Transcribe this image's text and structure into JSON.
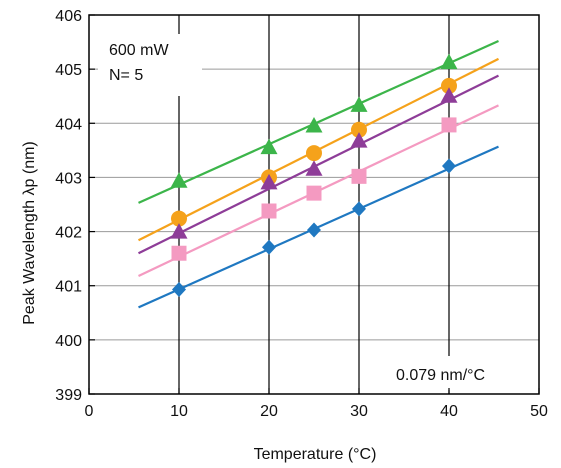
{
  "chart_data": {
    "type": "scatter",
    "title": "",
    "xlabel": "Temperature (°C)",
    "ylabel": "Peak Wavelength λp (nm)",
    "xlim": [
      0,
      50
    ],
    "ylim": [
      399,
      406
    ],
    "xticks": [
      0,
      10,
      20,
      30,
      40,
      50
    ],
    "yticks": [
      399,
      400,
      401,
      402,
      403,
      404,
      405,
      406
    ],
    "grid": true,
    "annotations": {
      "power": "600 mW",
      "count": "N= 5",
      "slope": "0.079 nm/°C"
    },
    "x": [
      10,
      20,
      25,
      30,
      40
    ],
    "series": [
      {
        "marker": "triangle",
        "color": "#3cb54a",
        "values": [
          402.93,
          403.55,
          403.95,
          404.33,
          405.12
        ],
        "fit": {
          "x": [
            5.5,
            45.5
          ],
          "y": [
            402.53,
            405.52
          ]
        }
      },
      {
        "marker": "circle",
        "color": "#f5a21b",
        "values": [
          402.24,
          403.0,
          403.45,
          403.88,
          404.69
        ],
        "fit": {
          "x": [
            5.5,
            45.5
          ],
          "y": [
            401.84,
            405.19
          ]
        }
      },
      {
        "marker": "triangle",
        "color": "#8e3d98",
        "values": [
          401.99,
          402.9,
          403.15,
          403.67,
          404.5
        ],
        "fit": {
          "x": [
            5.5,
            45.5
          ],
          "y": [
            401.6,
            404.88
          ]
        }
      },
      {
        "marker": "square",
        "color": "#f49ac1",
        "values": [
          401.6,
          402.38,
          402.71,
          403.02,
          403.97
        ],
        "fit": {
          "x": [
            5.5,
            45.5
          ],
          "y": [
            401.18,
            404.33
          ]
        }
      },
      {
        "marker": "diamond",
        "color": "#1f78c1",
        "values": [
          400.93,
          401.71,
          402.03,
          402.42,
          403.21
        ],
        "fit": {
          "x": [
            5.5,
            45.5
          ],
          "y": [
            400.6,
            403.57
          ]
        }
      }
    ]
  }
}
